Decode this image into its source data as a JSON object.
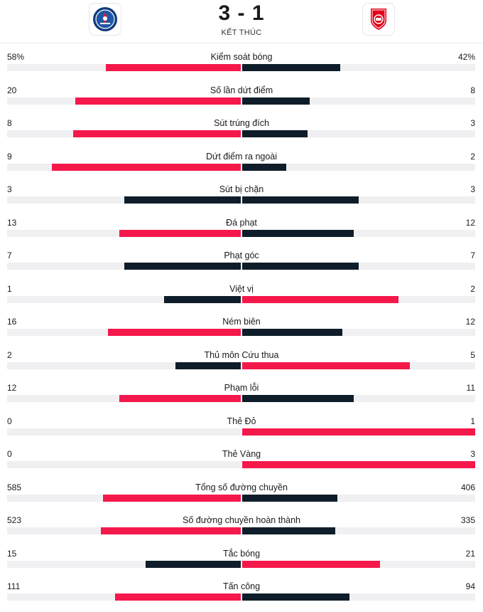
{
  "match": {
    "score": "3 - 1",
    "status": "KẾT THÚC",
    "home_logo_icon": "psg-crest-icon",
    "away_logo_icon": "brest-crest-icon"
  },
  "colors": {
    "leader": "#f5184b",
    "trailer": "#0e1d29",
    "track": "#f0f0f2"
  },
  "stats": [
    {
      "label": "Kiểm soát bóng",
      "home": "58%",
      "away": "42%",
      "home_fill": 0.58,
      "away_fill": 0.42,
      "home_color": "red",
      "away_color": "dark"
    },
    {
      "label": "Số lần dứt điểm",
      "home": "20",
      "away": "8",
      "home_fill": 0.71,
      "away_fill": 0.29,
      "home_color": "red",
      "away_color": "dark"
    },
    {
      "label": "Sút trúng đích",
      "home": "8",
      "away": "3",
      "home_fill": 0.72,
      "away_fill": 0.28,
      "home_color": "red",
      "away_color": "dark"
    },
    {
      "label": "Dứt điểm ra ngoài",
      "home": "9",
      "away": "2",
      "home_fill": 0.81,
      "away_fill": 0.19,
      "home_color": "red",
      "away_color": "dark"
    },
    {
      "label": "Sút bị chặn",
      "home": "3",
      "away": "3",
      "home_fill": 0.5,
      "away_fill": 0.5,
      "home_color": "dark",
      "away_color": "dark"
    },
    {
      "label": "Đá phạt",
      "home": "13",
      "away": "12",
      "home_fill": 0.52,
      "away_fill": 0.48,
      "home_color": "red",
      "away_color": "dark"
    },
    {
      "label": "Phạt góc",
      "home": "7",
      "away": "7",
      "home_fill": 0.5,
      "away_fill": 0.5,
      "home_color": "dark",
      "away_color": "dark"
    },
    {
      "label": "Việt vị",
      "home": "1",
      "away": "2",
      "home_fill": 0.33,
      "away_fill": 0.67,
      "home_color": "dark",
      "away_color": "red"
    },
    {
      "label": "Ném biên",
      "home": "16",
      "away": "12",
      "home_fill": 0.57,
      "away_fill": 0.43,
      "home_color": "red",
      "away_color": "dark"
    },
    {
      "label": "Thủ môn Cứu thua",
      "home": "2",
      "away": "5",
      "home_fill": 0.28,
      "away_fill": 0.72,
      "home_color": "dark",
      "away_color": "red"
    },
    {
      "label": "Phạm lỗi",
      "home": "12",
      "away": "11",
      "home_fill": 0.52,
      "away_fill": 0.48,
      "home_color": "red",
      "away_color": "dark"
    },
    {
      "label": "Thẻ Đỏ",
      "home": "0",
      "away": "1",
      "home_fill": 0,
      "away_fill": 1,
      "home_color": "dark",
      "away_color": "red"
    },
    {
      "label": "Thẻ Vàng",
      "home": "0",
      "away": "3",
      "home_fill": 0,
      "away_fill": 1,
      "home_color": "dark",
      "away_color": "red"
    },
    {
      "label": "Tổng số đường chuyền",
      "home": "585",
      "away": "406",
      "home_fill": 0.59,
      "away_fill": 0.41,
      "home_color": "red",
      "away_color": "dark"
    },
    {
      "label": "Số đường chuyền hoàn thành",
      "home": "523",
      "away": "335",
      "home_fill": 0.6,
      "away_fill": 0.4,
      "home_color": "red",
      "away_color": "dark"
    },
    {
      "label": "Tắc bóng",
      "home": "15",
      "away": "21",
      "home_fill": 0.41,
      "away_fill": 0.59,
      "home_color": "dark",
      "away_color": "red"
    },
    {
      "label": "Tấn công",
      "home": "111",
      "away": "94",
      "home_fill": 0.54,
      "away_fill": 0.46,
      "home_color": "red",
      "away_color": "dark"
    }
  ]
}
